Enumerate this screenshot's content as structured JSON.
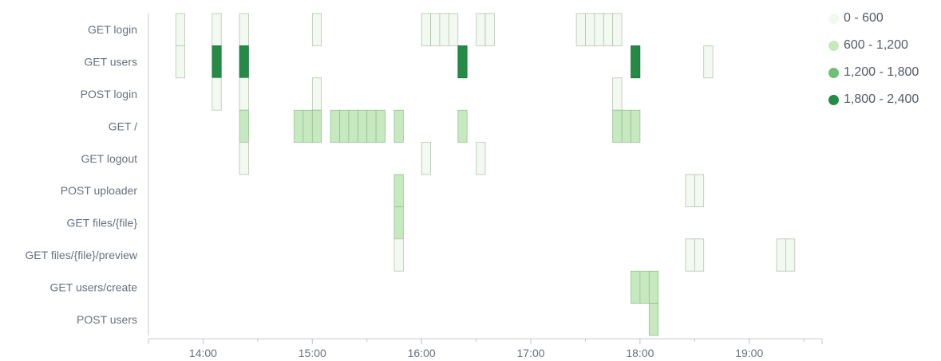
{
  "chart_data": {
    "type": "heatmap",
    "title": "",
    "xlabel": "",
    "ylabel": "",
    "x_ticks": [
      "14:00",
      "15:00",
      "16:00",
      "17:00",
      "18:00",
      "19:00"
    ],
    "x_range": [
      "13:30",
      "19:40"
    ],
    "bucket_minutes": 5,
    "categories": [
      "GET login",
      "GET users",
      "POST login",
      "GET /",
      "GET logout",
      "POST uploader",
      "GET files/{file}",
      "GET files/{file}/preview",
      "GET users/create",
      "POST users"
    ],
    "color_ranges": [
      {
        "label": "0 - 600",
        "color": "#f2f9f0"
      },
      {
        "label": "600 - 1,200",
        "color": "#c6e9c0"
      },
      {
        "label": "1,200 - 1,800",
        "color": "#6fbf77"
      },
      {
        "label": "1,800 - 2,400",
        "color": "#238b45"
      }
    ],
    "cells": [
      {
        "y": "GET login",
        "x": "13:45",
        "bin": 0
      },
      {
        "y": "GET login",
        "x": "14:05",
        "bin": 0
      },
      {
        "y": "GET login",
        "x": "14:20",
        "bin": 0
      },
      {
        "y": "GET login",
        "x": "15:00",
        "bin": 0
      },
      {
        "y": "GET login",
        "x": "16:00",
        "bin": 0
      },
      {
        "y": "GET login",
        "x": "16:05",
        "bin": 0
      },
      {
        "y": "GET login",
        "x": "16:10",
        "bin": 0
      },
      {
        "y": "GET login",
        "x": "16:15",
        "bin": 0
      },
      {
        "y": "GET login",
        "x": "16:30",
        "bin": 0
      },
      {
        "y": "GET login",
        "x": "16:35",
        "bin": 0
      },
      {
        "y": "GET login",
        "x": "17:25",
        "bin": 0
      },
      {
        "y": "GET login",
        "x": "17:30",
        "bin": 0
      },
      {
        "y": "GET login",
        "x": "17:35",
        "bin": 0
      },
      {
        "y": "GET login",
        "x": "17:40",
        "bin": 0
      },
      {
        "y": "GET login",
        "x": "17:45",
        "bin": 0
      },
      {
        "y": "GET users",
        "x": "13:45",
        "bin": 0
      },
      {
        "y": "GET users",
        "x": "14:05",
        "bin": 3
      },
      {
        "y": "GET users",
        "x": "14:20",
        "bin": 3
      },
      {
        "y": "GET users",
        "x": "16:20",
        "bin": 3
      },
      {
        "y": "GET users",
        "x": "17:55",
        "bin": 3
      },
      {
        "y": "GET users",
        "x": "18:35",
        "bin": 0
      },
      {
        "y": "POST login",
        "x": "14:05",
        "bin": 0
      },
      {
        "y": "POST login",
        "x": "14:20",
        "bin": 0
      },
      {
        "y": "POST login",
        "x": "15:00",
        "bin": 0
      },
      {
        "y": "POST login",
        "x": "17:45",
        "bin": 0
      },
      {
        "y": "GET /",
        "x": "14:20",
        "bin": 1
      },
      {
        "y": "GET /",
        "x": "14:50",
        "bin": 1
      },
      {
        "y": "GET /",
        "x": "14:55",
        "bin": 1
      },
      {
        "y": "GET /",
        "x": "15:00",
        "bin": 1
      },
      {
        "y": "GET /",
        "x": "15:10",
        "bin": 1
      },
      {
        "y": "GET /",
        "x": "15:15",
        "bin": 1
      },
      {
        "y": "GET /",
        "x": "15:20",
        "bin": 1
      },
      {
        "y": "GET /",
        "x": "15:25",
        "bin": 1
      },
      {
        "y": "GET /",
        "x": "15:30",
        "bin": 1
      },
      {
        "y": "GET /",
        "x": "15:35",
        "bin": 1
      },
      {
        "y": "GET /",
        "x": "15:45",
        "bin": 1
      },
      {
        "y": "GET /",
        "x": "16:20",
        "bin": 1
      },
      {
        "y": "GET /",
        "x": "17:45",
        "bin": 1
      },
      {
        "y": "GET /",
        "x": "17:50",
        "bin": 1
      },
      {
        "y": "GET /",
        "x": "17:55",
        "bin": 1
      },
      {
        "y": "GET logout",
        "x": "14:20",
        "bin": 0
      },
      {
        "y": "GET logout",
        "x": "16:00",
        "bin": 0
      },
      {
        "y": "GET logout",
        "x": "16:30",
        "bin": 0
      },
      {
        "y": "POST uploader",
        "x": "15:45",
        "bin": 1
      },
      {
        "y": "POST uploader",
        "x": "18:25",
        "bin": 0
      },
      {
        "y": "POST uploader",
        "x": "18:30",
        "bin": 0
      },
      {
        "y": "GET files/{file}",
        "x": "15:45",
        "bin": 1
      },
      {
        "y": "GET files/{file}/preview",
        "x": "15:45",
        "bin": 0
      },
      {
        "y": "GET files/{file}/preview",
        "x": "18:25",
        "bin": 0
      },
      {
        "y": "GET files/{file}/preview",
        "x": "18:30",
        "bin": 0
      },
      {
        "y": "GET files/{file}/preview",
        "x": "19:15",
        "bin": 0
      },
      {
        "y": "GET files/{file}/preview",
        "x": "19:20",
        "bin": 0
      },
      {
        "y": "GET users/create",
        "x": "17:55",
        "bin": 1
      },
      {
        "y": "GET users/create",
        "x": "18:00",
        "bin": 1
      },
      {
        "y": "GET users/create",
        "x": "18:05",
        "bin": 1
      },
      {
        "y": "POST users",
        "x": "18:05",
        "bin": 1
      }
    ]
  }
}
